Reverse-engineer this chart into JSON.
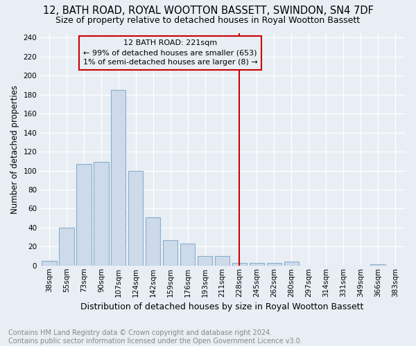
{
  "title": "12, BATH ROAD, ROYAL WOOTTON BASSETT, SWINDON, SN4 7DF",
  "subtitle": "Size of property relative to detached houses in Royal Wootton Bassett",
  "xlabel": "Distribution of detached houses by size in Royal Wootton Bassett",
  "ylabel": "Number of detached properties",
  "footnote": "Contains HM Land Registry data © Crown copyright and database right 2024.\nContains public sector information licensed under the Open Government Licence v3.0.",
  "categories": [
    "38sqm",
    "55sqm",
    "73sqm",
    "90sqm",
    "107sqm",
    "124sqm",
    "142sqm",
    "159sqm",
    "176sqm",
    "193sqm",
    "211sqm",
    "228sqm",
    "245sqm",
    "262sqm",
    "280sqm",
    "297sqm",
    "314sqm",
    "331sqm",
    "349sqm",
    "366sqm",
    "383sqm"
  ],
  "values": [
    5,
    40,
    107,
    109,
    185,
    100,
    51,
    27,
    23,
    10,
    10,
    3,
    3,
    3,
    4,
    0,
    0,
    0,
    0,
    1,
    0
  ],
  "bar_color": "#ccdaea",
  "bar_edge_color": "#89aecb",
  "property_line_x": 11.0,
  "property_line_color": "#cc0000",
  "annotation_text": "12 BATH ROAD: 221sqm\n← 99% of detached houses are smaller (653)\n1% of semi-detached houses are larger (8) →",
  "annotation_box_color": "#cc0000",
  "ylim": [
    0,
    245
  ],
  "yticks": [
    0,
    20,
    40,
    60,
    80,
    100,
    120,
    140,
    160,
    180,
    200,
    220,
    240
  ],
  "background_color": "#e8eef4",
  "grid_color": "#ffffff",
  "title_fontsize": 10.5,
  "subtitle_fontsize": 9,
  "xlabel_fontsize": 9,
  "ylabel_fontsize": 8.5,
  "tick_fontsize": 7.5,
  "annotation_fontsize": 8,
  "footnote_fontsize": 7
}
